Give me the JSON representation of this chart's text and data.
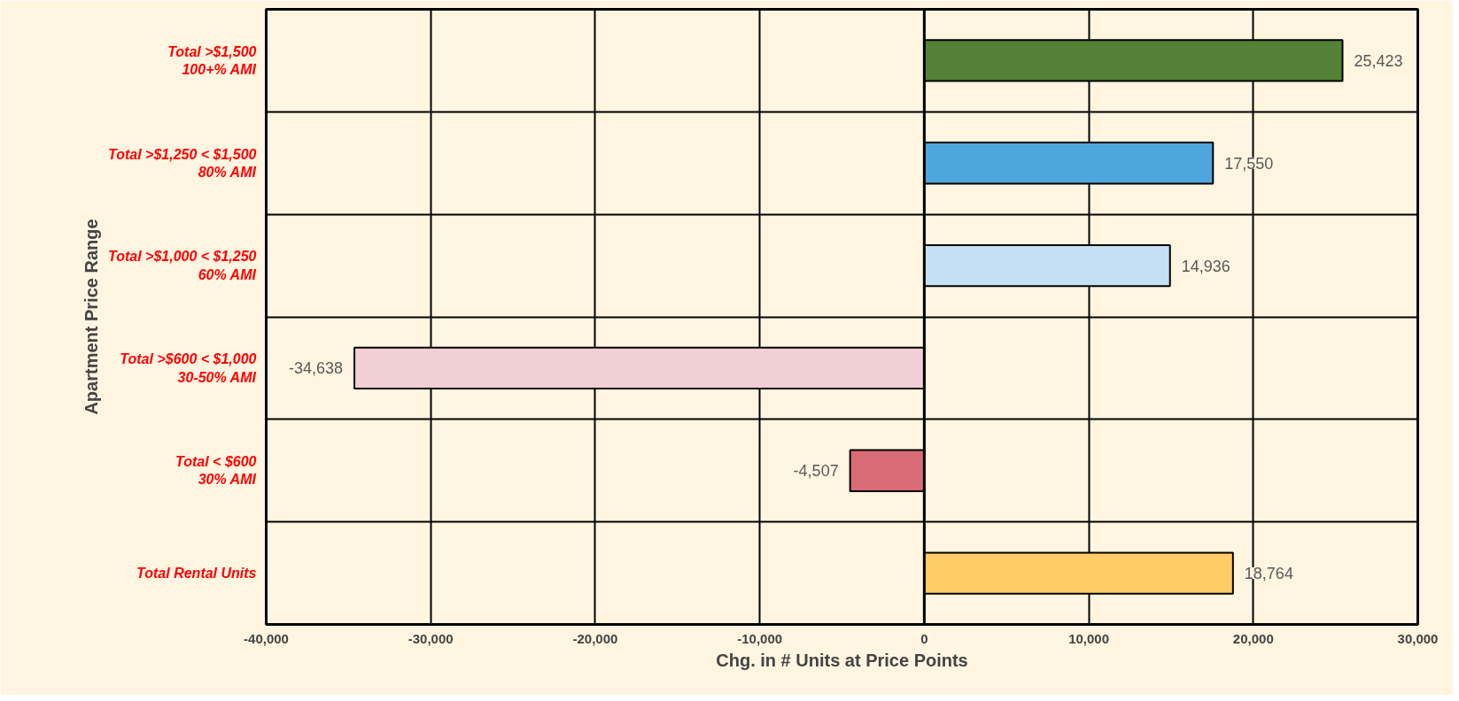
{
  "chart_data": {
    "type": "bar",
    "orientation": "horizontal",
    "xlabel": "Chg. in # Units at Price Points",
    "ylabel": "Apartment Price Range",
    "categories": [
      "Total >$1,500\n100+% AMI",
      "Total >$1,250 < $1,500\n80% AMI",
      "Total >$1,000 < $1,250\n60% AMI",
      "Total >$600 < $1,000\n30-50% AMI",
      "Total < $600\n30% AMI",
      "Total Rental Units"
    ],
    "values": [
      25423,
      17550,
      14936,
      -34638,
      -4507,
      18764
    ],
    "colors": [
      "#538135",
      "#4ea6dc",
      "#c5e0f4",
      "#f2ced5",
      "#d96b76",
      "#ffcc66"
    ],
    "value_labels": [
      "25,423",
      "17,550",
      "14,936",
      "-34,638",
      "-4,507",
      "18,764"
    ],
    "xlim": [
      -40000,
      30000
    ],
    "xticks": [
      {
        "value": -40000,
        "label": "-40,000"
      },
      {
        "value": -30000,
        "label": "-30,000"
      },
      {
        "value": -20000,
        "label": "-20,000"
      },
      {
        "value": -10000,
        "label": "-10,000"
      },
      0,
      {
        "value": 10000,
        "label": "10,000"
      },
      {
        "value": 20000,
        "label": "20,000"
      },
      {
        "value": 30000,
        "label": "30,000"
      }
    ],
    "grid": true
  }
}
